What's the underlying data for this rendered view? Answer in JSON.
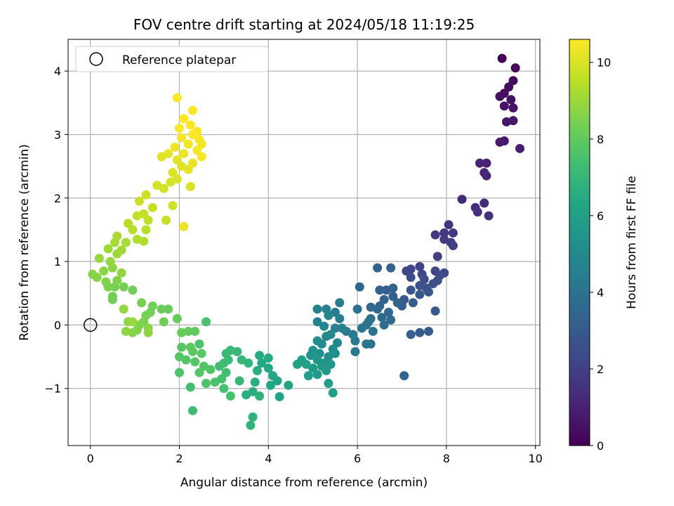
{
  "chart_data": {
    "type": "scatter",
    "title": "FOV centre drift starting at 2024/05/18 11:19:25",
    "xlabel": "Angular distance from reference (arcmin)",
    "ylabel": "Rotation from reference (arcmin)",
    "xlim": [
      -0.5,
      10.1
    ],
    "ylim": [
      -1.9,
      4.5
    ],
    "xticks": [
      0,
      2,
      4,
      6,
      8,
      10
    ],
    "yticks": [
      -1,
      0,
      1,
      2,
      3,
      4
    ],
    "xtick_labels": [
      "0",
      "2",
      "4",
      "6",
      "8",
      "10"
    ],
    "ytick_labels": [
      "−1",
      "0",
      "1",
      "2",
      "3",
      "4"
    ],
    "grid": true,
    "legend": {
      "position": "top-left",
      "entries": [
        "Reference platepar"
      ]
    },
    "reference_point": {
      "x": 0,
      "y": 0
    },
    "colorbar": {
      "label": "Hours from first FF file",
      "colormap": "viridis",
      "min": 0,
      "max": 10.6,
      "ticks": [
        0,
        2,
        4,
        6,
        8,
        10
      ],
      "tick_labels": [
        "0",
        "2",
        "4",
        "6",
        "8",
        "10"
      ]
    },
    "points": [
      {
        "x": 9.25,
        "y": 4.2,
        "t": 0.1
      },
      {
        "x": 9.55,
        "y": 4.05,
        "t": 0.2
      },
      {
        "x": 9.5,
        "y": 3.85,
        "t": 0.3
      },
      {
        "x": 9.4,
        "y": 3.75,
        "t": 0.35
      },
      {
        "x": 9.3,
        "y": 3.65,
        "t": 0.4
      },
      {
        "x": 9.2,
        "y": 3.6,
        "t": 0.45
      },
      {
        "x": 9.45,
        "y": 3.55,
        "t": 0.5
      },
      {
        "x": 9.3,
        "y": 3.45,
        "t": 0.55
      },
      {
        "x": 9.5,
        "y": 3.42,
        "t": 0.6
      },
      {
        "x": 9.35,
        "y": 3.2,
        "t": 0.65
      },
      {
        "x": 9.5,
        "y": 3.22,
        "t": 0.7
      },
      {
        "x": 9.3,
        "y": 2.9,
        "t": 0.75
      },
      {
        "x": 9.2,
        "y": 2.88,
        "t": 0.8
      },
      {
        "x": 9.65,
        "y": 2.78,
        "t": 0.85
      },
      {
        "x": 8.9,
        "y": 2.55,
        "t": 1.0
      },
      {
        "x": 8.75,
        "y": 2.55,
        "t": 1.05
      },
      {
        "x": 8.85,
        "y": 2.4,
        "t": 1.1
      },
      {
        "x": 8.9,
        "y": 2.35,
        "t": 1.15
      },
      {
        "x": 8.35,
        "y": 1.98,
        "t": 1.3
      },
      {
        "x": 8.85,
        "y": 1.92,
        "t": 1.35
      },
      {
        "x": 8.65,
        "y": 1.85,
        "t": 1.4
      },
      {
        "x": 8.7,
        "y": 1.78,
        "t": 1.45
      },
      {
        "x": 8.95,
        "y": 1.72,
        "t": 1.5
      },
      {
        "x": 8.05,
        "y": 1.58,
        "t": 1.6
      },
      {
        "x": 7.95,
        "y": 1.45,
        "t": 1.7
      },
      {
        "x": 8.15,
        "y": 1.45,
        "t": 1.75
      },
      {
        "x": 7.75,
        "y": 1.42,
        "t": 1.8
      },
      {
        "x": 7.95,
        "y": 1.35,
        "t": 1.85
      },
      {
        "x": 8.1,
        "y": 1.3,
        "t": 1.9
      },
      {
        "x": 8.15,
        "y": 1.25,
        "t": 1.95
      },
      {
        "x": 7.8,
        "y": 1.08,
        "t": 2.0
      },
      {
        "x": 7.4,
        "y": 0.92,
        "t": 2.1
      },
      {
        "x": 7.2,
        "y": 0.88,
        "t": 2.15
      },
      {
        "x": 7.1,
        "y": 0.85,
        "t": 2.2
      },
      {
        "x": 7.45,
        "y": 0.8,
        "t": 2.25
      },
      {
        "x": 7.75,
        "y": 0.85,
        "t": 2.3
      },
      {
        "x": 7.95,
        "y": 0.82,
        "t": 2.35
      },
      {
        "x": 7.85,
        "y": 0.78,
        "t": 2.4
      },
      {
        "x": 7.2,
        "y": 0.75,
        "t": 2.45
      },
      {
        "x": 7.5,
        "y": 0.72,
        "t": 2.5
      },
      {
        "x": 7.8,
        "y": 0.7,
        "t": 2.55
      },
      {
        "x": 7.7,
        "y": 0.65,
        "t": 2.6
      },
      {
        "x": 7.4,
        "y": 0.62,
        "t": 2.65
      },
      {
        "x": 7.55,
        "y": 0.58,
        "t": 2.7
      },
      {
        "x": 7.2,
        "y": 0.55,
        "t": 2.8
      },
      {
        "x": 7.6,
        "y": 0.52,
        "t": 2.85
      },
      {
        "x": 7.4,
        "y": 0.48,
        "t": 2.9
      },
      {
        "x": 7.05,
        "y": 0.4,
        "t": 3.0
      },
      {
        "x": 7.25,
        "y": 0.35,
        "t": 3.05
      },
      {
        "x": 7.0,
        "y": 0.3,
        "t": 3.1
      },
      {
        "x": 6.8,
        "y": 0.45,
        "t": 3.15
      },
      {
        "x": 6.65,
        "y": 0.55,
        "t": 3.2
      },
      {
        "x": 6.8,
        "y": 0.58,
        "t": 3.25
      },
      {
        "x": 6.5,
        "y": 0.55,
        "t": 3.3
      },
      {
        "x": 6.6,
        "y": 0.4,
        "t": 3.35
      },
      {
        "x": 6.9,
        "y": 0.35,
        "t": 3.4
      },
      {
        "x": 6.5,
        "y": 0.3,
        "t": 3.45
      },
      {
        "x": 6.45,
        "y": 0.25,
        "t": 3.5
      },
      {
        "x": 6.7,
        "y": 0.2,
        "t": 3.55
      },
      {
        "x": 6.3,
        "y": 0.28,
        "t": 3.6
      },
      {
        "x": 6.55,
        "y": 0.12,
        "t": 3.65
      },
      {
        "x": 6.75,
        "y": 0.08,
        "t": 3.7
      },
      {
        "x": 6.6,
        "y": 0.0,
        "t": 3.75
      },
      {
        "x": 6.3,
        "y": 0.1,
        "t": 3.8
      },
      {
        "x": 6.45,
        "y": 0.9,
        "t": 3.25
      },
      {
        "x": 6.75,
        "y": 0.9,
        "t": 3.3
      },
      {
        "x": 6.05,
        "y": 0.6,
        "t": 3.5
      },
      {
        "x": 7.75,
        "y": 0.22,
        "t": 2.9
      },
      {
        "x": 7.2,
        "y": -0.15,
        "t": 3.2
      },
      {
        "x": 7.6,
        "y": -0.1,
        "t": 3.1
      },
      {
        "x": 7.4,
        "y": -0.12,
        "t": 3.0
      },
      {
        "x": 7.05,
        "y": -0.8,
        "t": 3.4
      },
      {
        "x": 6.25,
        "y": 0.05,
        "t": 3.9
      },
      {
        "x": 6.1,
        "y": -0.05,
        "t": 3.95
      },
      {
        "x": 6.35,
        "y": -0.1,
        "t": 4.0
      },
      {
        "x": 6.0,
        "y": 0.25,
        "t": 4.0
      },
      {
        "x": 6.2,
        "y": 0.0,
        "t": 4.05
      },
      {
        "x": 6.3,
        "y": -0.3,
        "t": 4.1
      },
      {
        "x": 6.2,
        "y": -0.3,
        "t": 4.15
      },
      {
        "x": 5.95,
        "y": -0.25,
        "t": 4.2
      },
      {
        "x": 5.95,
        "y": -0.42,
        "t": 4.25
      },
      {
        "x": 5.75,
        "y": -0.1,
        "t": 4.3
      },
      {
        "x": 5.9,
        "y": -0.15,
        "t": 4.35
      },
      {
        "x": 5.6,
        "y": 0.35,
        "t": 4.4
      },
      {
        "x": 5.5,
        "y": 0.2,
        "t": 4.45
      },
      {
        "x": 5.6,
        "y": 0.1,
        "t": 4.5
      },
      {
        "x": 5.5,
        "y": -0.05,
        "t": 4.55
      },
      {
        "x": 5.65,
        "y": -0.05,
        "t": 4.6
      },
      {
        "x": 5.3,
        "y": 0.25,
        "t": 4.65
      },
      {
        "x": 5.1,
        "y": 0.25,
        "t": 4.7
      },
      {
        "x": 5.35,
        "y": 0.15,
        "t": 4.75
      },
      {
        "x": 5.1,
        "y": 0.05,
        "t": 4.8
      },
      {
        "x": 5.25,
        "y": -0.02,
        "t": 4.85
      },
      {
        "x": 5.4,
        "y": -0.15,
        "t": 4.9
      },
      {
        "x": 5.55,
        "y": -0.28,
        "t": 4.95
      },
      {
        "x": 5.3,
        "y": -0.18,
        "t": 5.0
      },
      {
        "x": 5.2,
        "y": -0.3,
        "t": 5.05
      },
      {
        "x": 5.1,
        "y": -0.25,
        "t": 5.1
      },
      {
        "x": 5.45,
        "y": -0.38,
        "t": 5.15
      },
      {
        "x": 5.35,
        "y": -0.5,
        "t": 5.2
      },
      {
        "x": 5.5,
        "y": -0.45,
        "t": 5.25
      },
      {
        "x": 5.15,
        "y": -0.45,
        "t": 5.3
      },
      {
        "x": 5.0,
        "y": -0.4,
        "t": 5.35
      },
      {
        "x": 4.95,
        "y": -0.48,
        "t": 5.4
      },
      {
        "x": 5.25,
        "y": -0.6,
        "t": 5.45
      },
      {
        "x": 5.4,
        "y": -0.62,
        "t": 5.5
      },
      {
        "x": 5.1,
        "y": -0.55,
        "t": 5.55
      },
      {
        "x": 5.2,
        "y": -0.65,
        "t": 5.6
      },
      {
        "x": 5.3,
        "y": -0.72,
        "t": 5.65
      },
      {
        "x": 5.0,
        "y": -0.68,
        "t": 5.7
      },
      {
        "x": 5.1,
        "y": -0.78,
        "t": 5.75
      },
      {
        "x": 4.9,
        "y": -0.8,
        "t": 5.8
      },
      {
        "x": 5.35,
        "y": -0.92,
        "t": 5.85
      },
      {
        "x": 5.45,
        "y": -1.07,
        "t": 5.9
      },
      {
        "x": 4.85,
        "y": -0.62,
        "t": 5.95
      },
      {
        "x": 4.75,
        "y": -0.55,
        "t": 6.0
      },
      {
        "x": 4.65,
        "y": -0.62,
        "t": 6.05
      },
      {
        "x": 4.45,
        "y": -0.95,
        "t": 6.1
      },
      {
        "x": 4.25,
        "y": -1.13,
        "t": 6.15
      },
      {
        "x": 4.2,
        "y": -0.88,
        "t": 6.2
      },
      {
        "x": 4.1,
        "y": -0.8,
        "t": 6.25
      },
      {
        "x": 4.05,
        "y": -0.95,
        "t": 6.3
      },
      {
        "x": 4.0,
        "y": -0.68,
        "t": 6.35
      },
      {
        "x": 3.85,
        "y": -0.6,
        "t": 6.4
      },
      {
        "x": 3.8,
        "y": -0.48,
        "t": 6.45
      },
      {
        "x": 4.0,
        "y": -0.52,
        "t": 6.5
      },
      {
        "x": 3.75,
        "y": -0.72,
        "t": 6.55
      },
      {
        "x": 3.7,
        "y": -0.9,
        "t": 6.6
      },
      {
        "x": 3.65,
        "y": -1.05,
        "t": 6.65
      },
      {
        "x": 3.5,
        "y": -1.1,
        "t": 6.7
      },
      {
        "x": 3.8,
        "y": -1.12,
        "t": 6.75
      },
      {
        "x": 3.65,
        "y": -1.45,
        "t": 6.8
      },
      {
        "x": 3.6,
        "y": -1.58,
        "t": 6.85
      },
      {
        "x": 3.55,
        "y": -0.6,
        "t": 6.9
      },
      {
        "x": 3.4,
        "y": -0.55,
        "t": 6.95
      },
      {
        "x": 3.35,
        "y": -0.88,
        "t": 7.0
      },
      {
        "x": 3.3,
        "y": -0.42,
        "t": 7.05
      },
      {
        "x": 3.15,
        "y": -0.4,
        "t": 7.1
      },
      {
        "x": 3.05,
        "y": -0.45,
        "t": 7.15
      },
      {
        "x": 3.1,
        "y": -0.55,
        "t": 7.2
      },
      {
        "x": 3.0,
        "y": -0.6,
        "t": 7.25
      },
      {
        "x": 2.9,
        "y": -0.65,
        "t": 7.3
      },
      {
        "x": 3.05,
        "y": -0.75,
        "t": 7.35
      },
      {
        "x": 2.95,
        "y": -0.85,
        "t": 7.4
      },
      {
        "x": 3.0,
        "y": -1.0,
        "t": 7.45
      },
      {
        "x": 3.15,
        "y": -1.12,
        "t": 7.5
      },
      {
        "x": 2.8,
        "y": -0.9,
        "t": 7.55
      },
      {
        "x": 2.6,
        "y": -0.92,
        "t": 7.6
      },
      {
        "x": 2.7,
        "y": -0.7,
        "t": 7.65
      },
      {
        "x": 2.55,
        "y": -0.65,
        "t": 7.7
      },
      {
        "x": 2.45,
        "y": -0.75,
        "t": 7.75
      },
      {
        "x": 2.35,
        "y": -0.58,
        "t": 7.8
      },
      {
        "x": 2.5,
        "y": -0.45,
        "t": 7.85
      },
      {
        "x": 2.3,
        "y": -0.42,
        "t": 7.9
      },
      {
        "x": 2.25,
        "y": -0.35,
        "t": 7.95
      },
      {
        "x": 2.45,
        "y": -0.3,
        "t": 7.6
      },
      {
        "x": 2.6,
        "y": 0.05,
        "t": 7.55
      },
      {
        "x": 2.15,
        "y": -0.55,
        "t": 7.7
      },
      {
        "x": 2.0,
        "y": -0.5,
        "t": 7.75
      },
      {
        "x": 2.05,
        "y": -0.35,
        "t": 7.8
      },
      {
        "x": 2.25,
        "y": -0.98,
        "t": 7.35
      },
      {
        "x": 2.3,
        "y": -1.35,
        "t": 7.3
      },
      {
        "x": 2.0,
        "y": -0.75,
        "t": 7.65
      },
      {
        "x": 2.35,
        "y": -0.1,
        "t": 8.0
      },
      {
        "x": 2.2,
        "y": -0.1,
        "t": 8.05
      },
      {
        "x": 2.05,
        "y": -0.12,
        "t": 8.1
      },
      {
        "x": 1.95,
        "y": 0.1,
        "t": 8.1
      },
      {
        "x": 1.75,
        "y": 0.25,
        "t": 8.15
      },
      {
        "x": 1.6,
        "y": 0.25,
        "t": 8.2
      },
      {
        "x": 1.65,
        "y": 0.05,
        "t": 8.25
      },
      {
        "x": 1.4,
        "y": 0.3,
        "t": 8.3
      },
      {
        "x": 1.35,
        "y": 0.2,
        "t": 8.35
      },
      {
        "x": 1.25,
        "y": 0.15,
        "t": 8.4
      },
      {
        "x": 1.15,
        "y": 0.35,
        "t": 8.45
      },
      {
        "x": 1.2,
        "y": 0.05,
        "t": 8.5
      },
      {
        "x": 1.1,
        "y": 0.0,
        "t": 8.55
      },
      {
        "x": 1.05,
        "y": -0.08,
        "t": 8.6
      },
      {
        "x": 0.95,
        "y": -0.12,
        "t": 8.65
      },
      {
        "x": 1.3,
        "y": -0.05,
        "t": 8.7
      },
      {
        "x": 0.85,
        "y": 0.05,
        "t": 8.75
      },
      {
        "x": 0.8,
        "y": -0.1,
        "t": 8.8
      },
      {
        "x": 1.3,
        "y": -0.12,
        "t": 8.85
      },
      {
        "x": 0.75,
        "y": 0.25,
        "t": 8.9
      },
      {
        "x": 0.95,
        "y": 0.05,
        "t": 8.95
      },
      {
        "x": 0.5,
        "y": 0.4,
        "t": 8.3
      },
      {
        "x": 0.5,
        "y": 0.45,
        "t": 8.3
      },
      {
        "x": 0.95,
        "y": 0.55,
        "t": 8.3
      },
      {
        "x": 0.75,
        "y": 0.6,
        "t": 8.4
      },
      {
        "x": 0.55,
        "y": 0.6,
        "t": 8.45
      },
      {
        "x": 0.4,
        "y": 0.6,
        "t": 8.5
      },
      {
        "x": 0.6,
        "y": 0.7,
        "t": 8.55
      },
      {
        "x": 0.35,
        "y": 0.68,
        "t": 8.6
      },
      {
        "x": 0.15,
        "y": 0.75,
        "t": 8.65
      },
      {
        "x": 0.05,
        "y": 0.8,
        "t": 8.7
      },
      {
        "x": 0.3,
        "y": 0.85,
        "t": 8.75
      },
      {
        "x": 0.5,
        "y": 0.9,
        "t": 8.8
      },
      {
        "x": 0.7,
        "y": 0.82,
        "t": 8.85
      },
      {
        "x": 0.45,
        "y": 1.0,
        "t": 8.9
      },
      {
        "x": 0.2,
        "y": 1.05,
        "t": 8.95
      },
      {
        "x": 0.6,
        "y": 1.12,
        "t": 9.0
      },
      {
        "x": 0.4,
        "y": 1.2,
        "t": 9.05
      },
      {
        "x": 0.7,
        "y": 1.18,
        "t": 9.1
      },
      {
        "x": 0.55,
        "y": 1.3,
        "t": 9.15
      },
      {
        "x": 0.8,
        "y": 1.3,
        "t": 9.2
      },
      {
        "x": 0.6,
        "y": 1.4,
        "t": 9.25
      },
      {
        "x": 1.05,
        "y": 1.35,
        "t": 9.3
      },
      {
        "x": 1.2,
        "y": 1.32,
        "t": 9.35
      },
      {
        "x": 0.95,
        "y": 1.5,
        "t": 9.4
      },
      {
        "x": 1.25,
        "y": 1.5,
        "t": 9.45
      },
      {
        "x": 0.85,
        "y": 1.6,
        "t": 9.5
      },
      {
        "x": 1.3,
        "y": 1.65,
        "t": 9.55
      },
      {
        "x": 1.05,
        "y": 1.72,
        "t": 9.6
      },
      {
        "x": 1.2,
        "y": 1.75,
        "t": 9.65
      },
      {
        "x": 1.4,
        "y": 1.85,
        "t": 9.7
      },
      {
        "x": 1.1,
        "y": 1.95,
        "t": 9.75
      },
      {
        "x": 1.25,
        "y": 2.05,
        "t": 9.8
      },
      {
        "x": 1.5,
        "y": 2.2,
        "t": 9.85
      },
      {
        "x": 1.65,
        "y": 2.15,
        "t": 9.9
      },
      {
        "x": 1.8,
        "y": 2.25,
        "t": 9.95
      },
      {
        "x": 1.95,
        "y": 2.3,
        "t": 10.0
      },
      {
        "x": 1.85,
        "y": 2.4,
        "t": 10.05
      },
      {
        "x": 2.05,
        "y": 2.5,
        "t": 10.1
      },
      {
        "x": 1.95,
        "y": 2.6,
        "t": 10.15
      },
      {
        "x": 2.2,
        "y": 2.45,
        "t": 10.2
      },
      {
        "x": 2.3,
        "y": 2.55,
        "t": 10.25
      },
      {
        "x": 2.1,
        "y": 2.7,
        "t": 10.3
      },
      {
        "x": 1.9,
        "y": 2.8,
        "t": 10.35
      },
      {
        "x": 2.2,
        "y": 2.85,
        "t": 10.4
      },
      {
        "x": 2.4,
        "y": 2.75,
        "t": 10.45
      },
      {
        "x": 2.5,
        "y": 2.65,
        "t": 10.5
      },
      {
        "x": 2.05,
        "y": 2.95,
        "t": 10.5
      },
      {
        "x": 2.3,
        "y": 3.0,
        "t": 10.55
      },
      {
        "x": 2.0,
        "y": 3.1,
        "t": 10.55
      },
      {
        "x": 2.25,
        "y": 3.15,
        "t": 10.6
      },
      {
        "x": 2.4,
        "y": 3.05,
        "t": 10.6
      },
      {
        "x": 2.1,
        "y": 3.25,
        "t": 10.6
      },
      {
        "x": 2.3,
        "y": 3.38,
        "t": 10.6
      },
      {
        "x": 1.95,
        "y": 3.58,
        "t": 10.6
      },
      {
        "x": 1.75,
        "y": 2.7,
        "t": 10.2
      },
      {
        "x": 1.6,
        "y": 2.65,
        "t": 10.1
      },
      {
        "x": 2.25,
        "y": 2.18,
        "t": 10.0
      },
      {
        "x": 1.85,
        "y": 1.88,
        "t": 9.8
      },
      {
        "x": 1.7,
        "y": 1.65,
        "t": 9.7
      },
      {
        "x": 2.1,
        "y": 1.55,
        "t": 10.3
      },
      {
        "x": 2.45,
        "y": 2.92,
        "t": 10.5
      },
      {
        "x": 2.5,
        "y": 2.85,
        "t": 10.4
      }
    ]
  }
}
